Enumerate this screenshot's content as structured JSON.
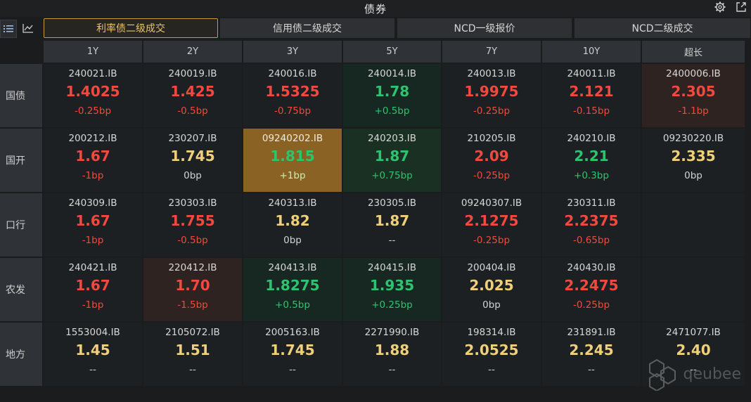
{
  "window": {
    "title": "债券"
  },
  "icons": {
    "settings": "gear-icon",
    "popout": "external-link-icon",
    "list_view": "list-icon",
    "chart_view": "line-chart-icon"
  },
  "tabs": [
    {
      "label": "利率债二级成交",
      "active": true
    },
    {
      "label": "信用债二级成交",
      "active": false
    },
    {
      "label": "NCD一级报价",
      "active": false
    },
    {
      "label": "NCD二级成交",
      "active": false
    }
  ],
  "columns": [
    "1Y",
    "2Y",
    "3Y",
    "5Y",
    "7Y",
    "10Y",
    "超长"
  ],
  "rows": [
    {
      "label": "国债",
      "cells": [
        {
          "code": "240021.IB",
          "yield": "1.4025",
          "change": "-0.25bp",
          "color": "red",
          "bg": "dark"
        },
        {
          "code": "240019.IB",
          "yield": "1.425",
          "change": "-0.5bp",
          "color": "red",
          "bg": "dark"
        },
        {
          "code": "240016.IB",
          "yield": "1.5325",
          "change": "-0.75bp",
          "color": "red",
          "bg": "dark"
        },
        {
          "code": "240014.IB",
          "yield": "1.78",
          "change": "+0.5bp",
          "color": "green",
          "bg": "green"
        },
        {
          "code": "240013.IB",
          "yield": "1.9975",
          "change": "-0.25bp",
          "color": "red",
          "bg": "dark"
        },
        {
          "code": "240011.IB",
          "yield": "2.121",
          "change": "-0.15bp",
          "color": "red",
          "bg": "dark"
        },
        {
          "code": "2400006.IB",
          "yield": "2.305",
          "change": "-1.1bp",
          "color": "red",
          "bg": "red"
        }
      ]
    },
    {
      "label": "国开",
      "cells": [
        {
          "code": "200212.IB",
          "yield": "1.67",
          "change": "-1bp",
          "color": "red",
          "bg": "dark"
        },
        {
          "code": "230207.IB",
          "yield": "1.745",
          "change": "0bp",
          "color": "yellow",
          "bg": "dark"
        },
        {
          "code": "09240202.IB",
          "yield": "1.815",
          "change": "+1bp",
          "color": "green",
          "bg": "amber"
        },
        {
          "code": "240203.IB",
          "yield": "1.87",
          "change": "+0.75bp",
          "color": "green",
          "bg": "greenbright"
        },
        {
          "code": "210205.IB",
          "yield": "2.09",
          "change": "-0.25bp",
          "color": "red",
          "bg": "dark"
        },
        {
          "code": "240210.IB",
          "yield": "2.21",
          "change": "+0.3bp",
          "color": "green",
          "bg": "dark"
        },
        {
          "code": "09230220.IB",
          "yield": "2.335",
          "change": "0bp",
          "color": "yellow",
          "bg": "dark"
        }
      ]
    },
    {
      "label": "口行",
      "cells": [
        {
          "code": "240309.IB",
          "yield": "1.67",
          "change": "-1bp",
          "color": "red",
          "bg": "dark"
        },
        {
          "code": "230303.IB",
          "yield": "1.755",
          "change": "-0.5bp",
          "color": "red",
          "bg": "dark"
        },
        {
          "code": "240313.IB",
          "yield": "1.82",
          "change": "0bp",
          "color": "yellow",
          "bg": "dark"
        },
        {
          "code": "230305.IB",
          "yield": "1.87",
          "change": "--",
          "color": "yellow",
          "bg": "dark"
        },
        {
          "code": "09240307.IB",
          "yield": "2.1275",
          "change": "-0.25bp",
          "color": "red",
          "bg": "dark"
        },
        {
          "code": "230311.IB",
          "yield": "2.2375",
          "change": "-0.65bp",
          "color": "red",
          "bg": "dark"
        },
        {
          "code": "",
          "yield": "",
          "change": "",
          "color": "grey",
          "bg": "dark"
        }
      ]
    },
    {
      "label": "农发",
      "cells": [
        {
          "code": "240421.IB",
          "yield": "1.67",
          "change": "-1bp",
          "color": "red",
          "bg": "dark"
        },
        {
          "code": "220412.IB",
          "yield": "1.70",
          "change": "-1.5bp",
          "color": "red",
          "bg": "red"
        },
        {
          "code": "240413.IB",
          "yield": "1.8275",
          "change": "+0.5bp",
          "color": "green",
          "bg": "green"
        },
        {
          "code": "240415.IB",
          "yield": "1.935",
          "change": "+0.25bp",
          "color": "green",
          "bg": "green"
        },
        {
          "code": "200404.IB",
          "yield": "2.025",
          "change": "0bp",
          "color": "yellow",
          "bg": "dark"
        },
        {
          "code": "240430.IB",
          "yield": "2.2475",
          "change": "-0.25bp",
          "color": "red",
          "bg": "dark"
        },
        {
          "code": "",
          "yield": "",
          "change": "",
          "color": "grey",
          "bg": "dark"
        }
      ]
    },
    {
      "label": "地方",
      "cells": [
        {
          "code": "1553004.IB",
          "yield": "1.45",
          "change": "--",
          "color": "yellow",
          "bg": "dark"
        },
        {
          "code": "2105072.IB",
          "yield": "1.51",
          "change": "--",
          "color": "yellow",
          "bg": "dark"
        },
        {
          "code": "2005163.IB",
          "yield": "1.745",
          "change": "--",
          "color": "yellow",
          "bg": "dark"
        },
        {
          "code": "2271990.IB",
          "yield": "1.88",
          "change": "--",
          "color": "yellow",
          "bg": "dark"
        },
        {
          "code": "198314.IB",
          "yield": "2.0525",
          "change": "--",
          "color": "yellow",
          "bg": "dark"
        },
        {
          "code": "231891.IB",
          "yield": "2.245",
          "change": "--",
          "color": "yellow",
          "bg": "dark"
        },
        {
          "code": "2471077.IB",
          "yield": "2.40",
          "change": "--",
          "color": "yellow",
          "bg": "dark"
        }
      ]
    }
  ],
  "watermark": {
    "text": "qeubee"
  }
}
